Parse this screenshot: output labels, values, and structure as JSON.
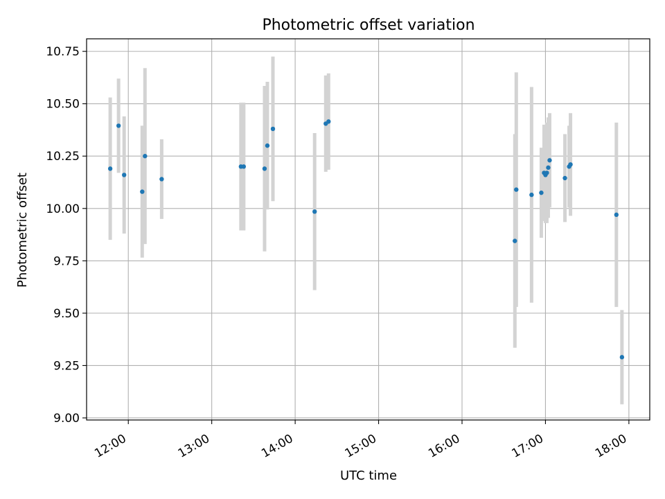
{
  "chart_data": {
    "type": "scatter",
    "title": "Photometric offset variation",
    "xlabel": "UTC time",
    "ylabel": "Photometric offset",
    "x_type": "time",
    "xlim": [
      "11:30",
      "18:15"
    ],
    "ylim": [
      8.99,
      10.81
    ],
    "x_ticks": [
      "12:00",
      "13:00",
      "14:00",
      "15:00",
      "16:00",
      "17:00",
      "18:00"
    ],
    "y_ticks": [
      9.0,
      9.25,
      9.5,
      9.75,
      10.0,
      10.25,
      10.5,
      10.75
    ],
    "y_tick_labels": [
      "9.00",
      "9.25",
      "9.50",
      "9.75",
      "10.00",
      "10.25",
      "10.50",
      "10.75"
    ],
    "grid": true,
    "legend": false,
    "marker_color": "#1f77b4",
    "errorbar_color": "#d3d3d3",
    "points": [
      {
        "x": "11:47",
        "y": 10.19,
        "yerr": 0.34
      },
      {
        "x": "11:53",
        "y": 10.395,
        "yerr": 0.225
      },
      {
        "x": "11:57",
        "y": 10.16,
        "yerr": 0.28
      },
      {
        "x": "12:10",
        "y": 10.08,
        "yerr": 0.315
      },
      {
        "x": "12:12",
        "y": 10.25,
        "yerr": 0.42
      },
      {
        "x": "12:24",
        "y": 10.14,
        "yerr": 0.19
      },
      {
        "x": "13:21",
        "y": 10.2,
        "yerr": 0.305
      },
      {
        "x": "13:23",
        "y": 10.2,
        "yerr": 0.305
      },
      {
        "x": "13:38",
        "y": 10.19,
        "yerr": 0.395
      },
      {
        "x": "13:40",
        "y": 10.3,
        "yerr": 0.305
      },
      {
        "x": "13:44",
        "y": 10.38,
        "yerr": 0.345
      },
      {
        "x": "14:14",
        "y": 9.985,
        "yerr": 0.375
      },
      {
        "x": "14:22",
        "y": 10.405,
        "yerr": 0.23
      },
      {
        "x": "14:24",
        "y": 10.415,
        "yerr": 0.23
      },
      {
        "x": "16:38",
        "y": 9.845,
        "yerr": 0.51
      },
      {
        "x": "16:39",
        "y": 10.09,
        "yerr": 0.56
      },
      {
        "x": "16:50",
        "y": 10.065,
        "yerr": 0.515
      },
      {
        "x": "16:57",
        "y": 10.075,
        "yerr": 0.215
      },
      {
        "x": "16:59",
        "y": 10.17,
        "yerr": 0.23
      },
      {
        "x": "16:60",
        "y": 10.16,
        "yerr": 0.23
      },
      {
        "x": "17:01",
        "y": 10.17,
        "yerr": 0.24
      },
      {
        "x": "17:02",
        "y": 10.195,
        "yerr": 0.24
      },
      {
        "x": "17:03",
        "y": 10.23,
        "yerr": 0.225
      },
      {
        "x": "17:14",
        "y": 10.145,
        "yerr": 0.21
      },
      {
        "x": "17:17",
        "y": 10.2,
        "yerr": 0.195
      },
      {
        "x": "17:18",
        "y": 10.21,
        "yerr": 0.245
      },
      {
        "x": "17:51",
        "y": 9.97,
        "yerr": 0.44
      },
      {
        "x": "17:55",
        "y": 9.29,
        "yerr": 0.225
      }
    ]
  }
}
